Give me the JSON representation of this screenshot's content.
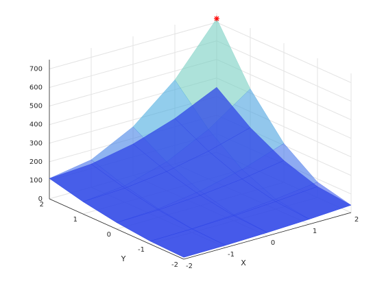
{
  "chart_data": {
    "type": "surface",
    "xlabel": "X",
    "ylabel": "Y",
    "x": [
      -2,
      -1,
      0,
      1,
      2
    ],
    "y": [
      -2,
      -1,
      0,
      1,
      2
    ],
    "xlim": [
      -2,
      2
    ],
    "ylim": [
      -2,
      2
    ],
    "zlim": [
      0,
      750
    ],
    "xticks": [
      -2,
      -1,
      0,
      1,
      2
    ],
    "yticks": [
      -2,
      -1,
      0,
      1,
      2
    ],
    "zticks": [
      0,
      100,
      200,
      300,
      400,
      500,
      600,
      700
    ],
    "grid": true,
    "colormap": [
      "#3d4bf0",
      "#4ec9d9",
      "#f5e27a"
    ],
    "surfaces": [
      {
        "z": [
          [
            10,
            12,
            18,
            27,
            40
          ],
          [
            16,
            20,
            33,
            54,
            83
          ],
          [
            35,
            46,
            79,
            133,
            210
          ],
          [
            66,
            89,
            155,
            267,
            423
          ],
          [
            110,
            148,
            263,
            453,
            720
          ]
        ],
        "coloring": "colormap",
        "opacity": 0.6
      },
      {
        "z": [
          [
            10,
            12,
            18,
            27,
            40
          ],
          [
            16,
            19,
            27,
            41,
            59
          ],
          [
            35,
            40,
            56,
            81,
            118
          ],
          [
            66,
            76,
            103,
            150,
            214
          ],
          [
            110,
            125,
            170,
            245,
            350
          ]
        ],
        "color": "#2f45e6",
        "opacity": 0.75
      }
    ],
    "peak": {
      "x": 2,
      "y": 2,
      "z": 720,
      "color": "#ff0000"
    }
  }
}
